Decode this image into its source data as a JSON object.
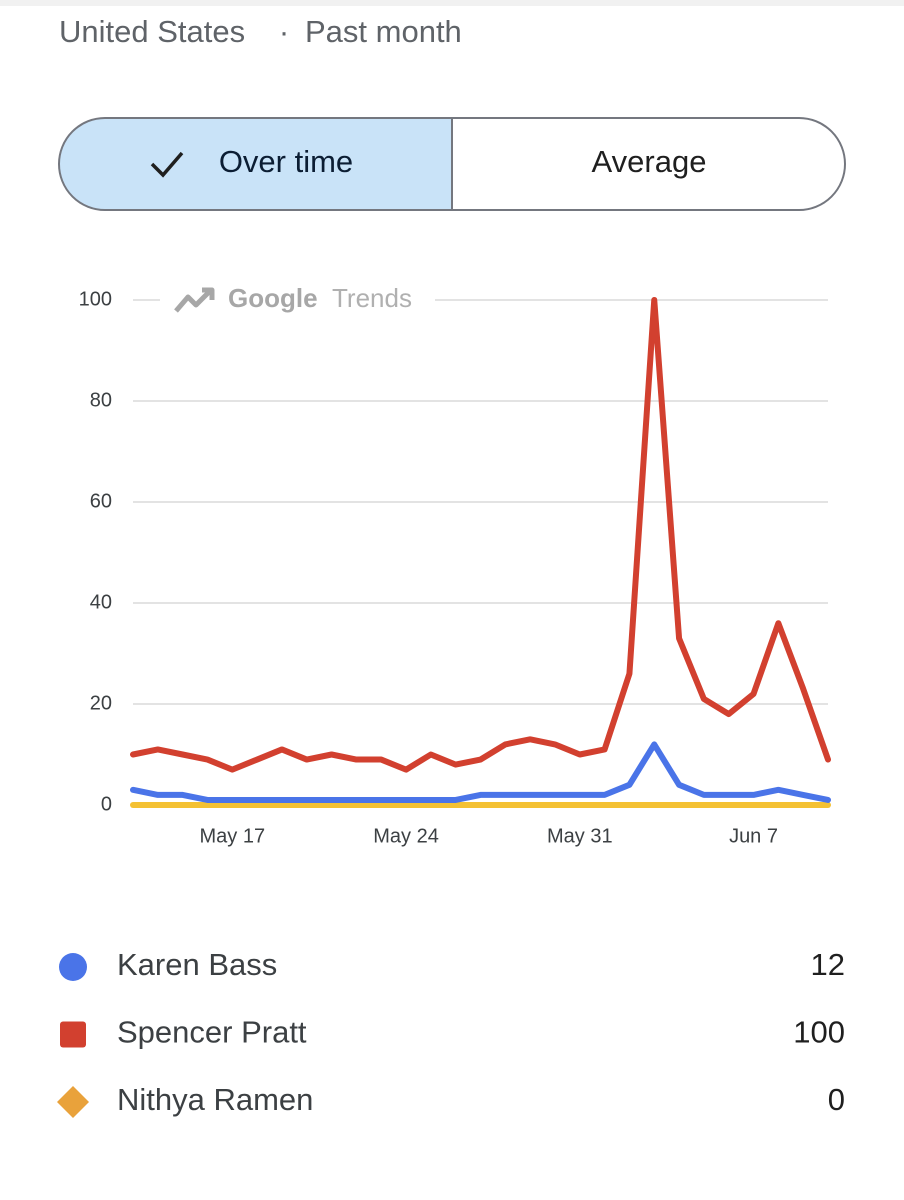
{
  "header": {
    "region": "United States",
    "separator": "·",
    "period": "Past month"
  },
  "toggle": {
    "options": [
      "Over time",
      "Average"
    ],
    "selected": 0
  },
  "watermark": {
    "brand": "Google",
    "product": "Trends"
  },
  "chart_data": {
    "type": "line",
    "categories": [
      null,
      null,
      null,
      null,
      "May 17",
      null,
      null,
      null,
      null,
      null,
      null,
      "May 24",
      null,
      null,
      null,
      null,
      null,
      null,
      "May 31",
      null,
      null,
      null,
      null,
      null,
      null,
      "Jun 7",
      null,
      null,
      null
    ],
    "series": [
      {
        "name": "Karen Bass",
        "color": "#4a74e8",
        "marker": "circle",
        "legend_value": 12,
        "values": [
          3,
          2,
          2,
          1,
          1,
          1,
          1,
          1,
          1,
          1,
          1,
          1,
          1,
          1,
          2,
          2,
          2,
          2,
          2,
          2,
          4,
          12,
          4,
          2,
          2,
          2,
          3,
          2,
          1
        ]
      },
      {
        "name": "Spencer Pratt",
        "color": "#d2402f",
        "marker": "square",
        "legend_value": 100,
        "values": [
          10,
          11,
          10,
          9,
          7,
          9,
          11,
          9,
          10,
          9,
          9,
          7,
          10,
          8,
          9,
          12,
          13,
          12,
          10,
          11,
          26,
          100,
          33,
          21,
          18,
          22,
          36,
          23,
          9
        ]
      },
      {
        "name": "Nithya Ramen",
        "color": "#f4c133",
        "marker": "diamond",
        "legend_value": 0,
        "values": [
          0,
          0,
          0,
          0,
          0,
          0,
          0,
          0,
          0,
          0,
          0,
          0,
          0,
          0,
          0,
          0,
          0,
          0,
          0,
          0,
          0,
          0,
          0,
          0,
          0,
          0,
          0,
          0,
          0
        ]
      }
    ],
    "ylim": [
      0,
      100
    ],
    "yticks": [
      0,
      20,
      40,
      60,
      80,
      100
    ],
    "grid": true
  }
}
